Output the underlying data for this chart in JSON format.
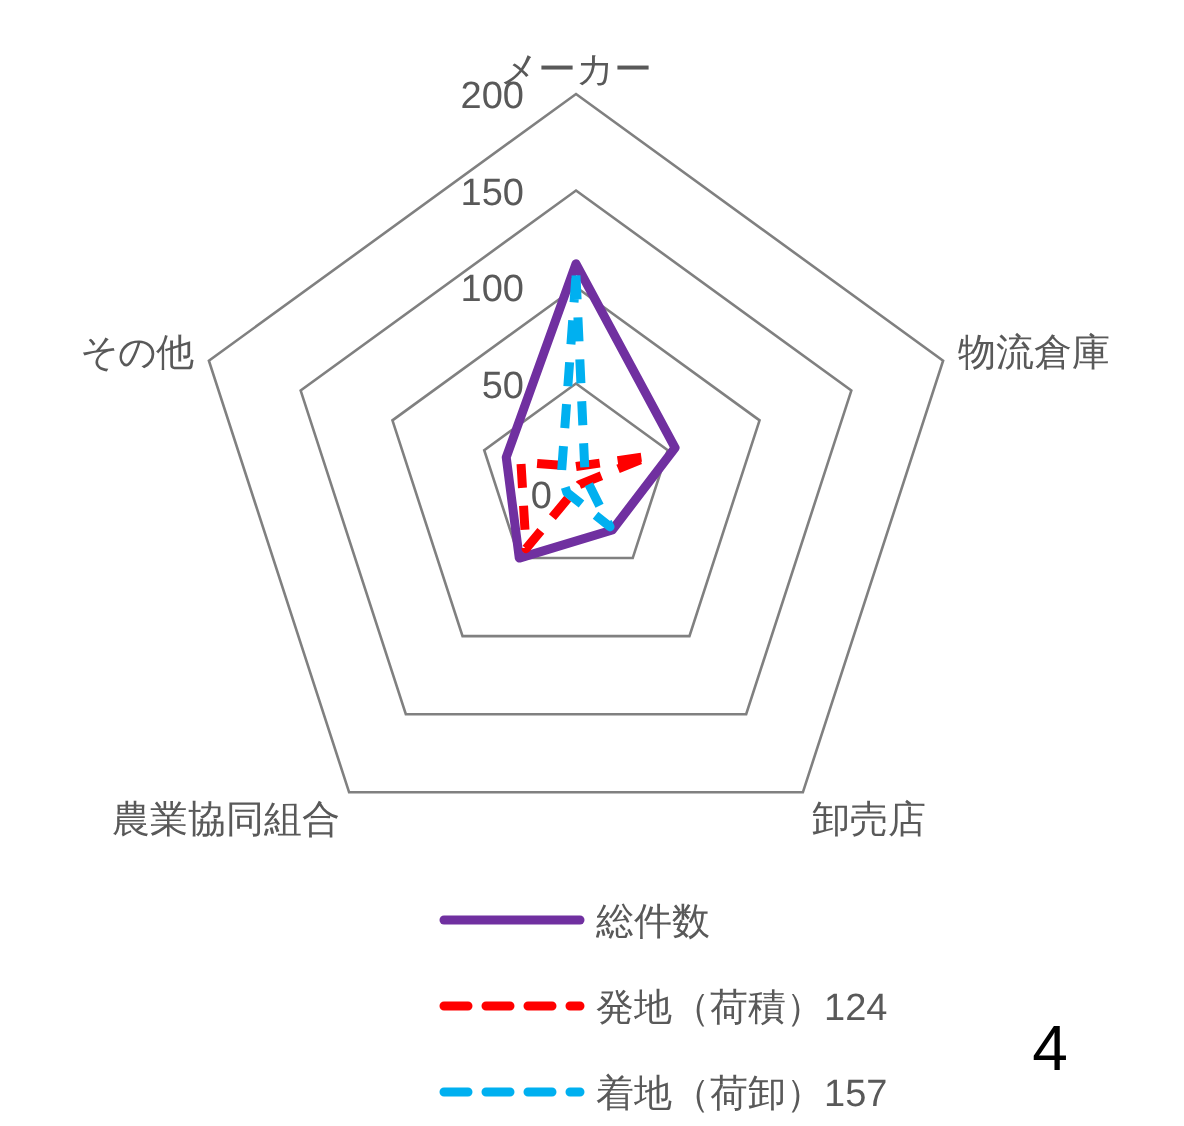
{
  "chart_data": {
    "type": "radar",
    "categories": [
      "メーカー",
      "物流倉庫",
      "卸売店",
      "農業協同組合",
      "その他"
    ],
    "ylim": [
      0,
      200
    ],
    "yticks": [
      0,
      50,
      100,
      150,
      200
    ],
    "grid": true,
    "legend": "bottom",
    "annotations": [
      "4"
    ],
    "series": [
      {
        "name": "総件数",
        "color": "#7030a0",
        "line_style": "solid",
        "values": [
          112,
          54,
          32,
          50,
          38
        ]
      },
      {
        "name": "発地（荷積）124",
        "color": "#ff0000",
        "line_style": "dashed",
        "values": [
          7,
          40,
          3,
          44,
          30
        ]
      },
      {
        "name": "着地（荷卸）157",
        "color": "#00b0f0",
        "line_style": "dashed",
        "values": [
          106,
          5,
          30,
          8,
          8
        ]
      }
    ]
  }
}
